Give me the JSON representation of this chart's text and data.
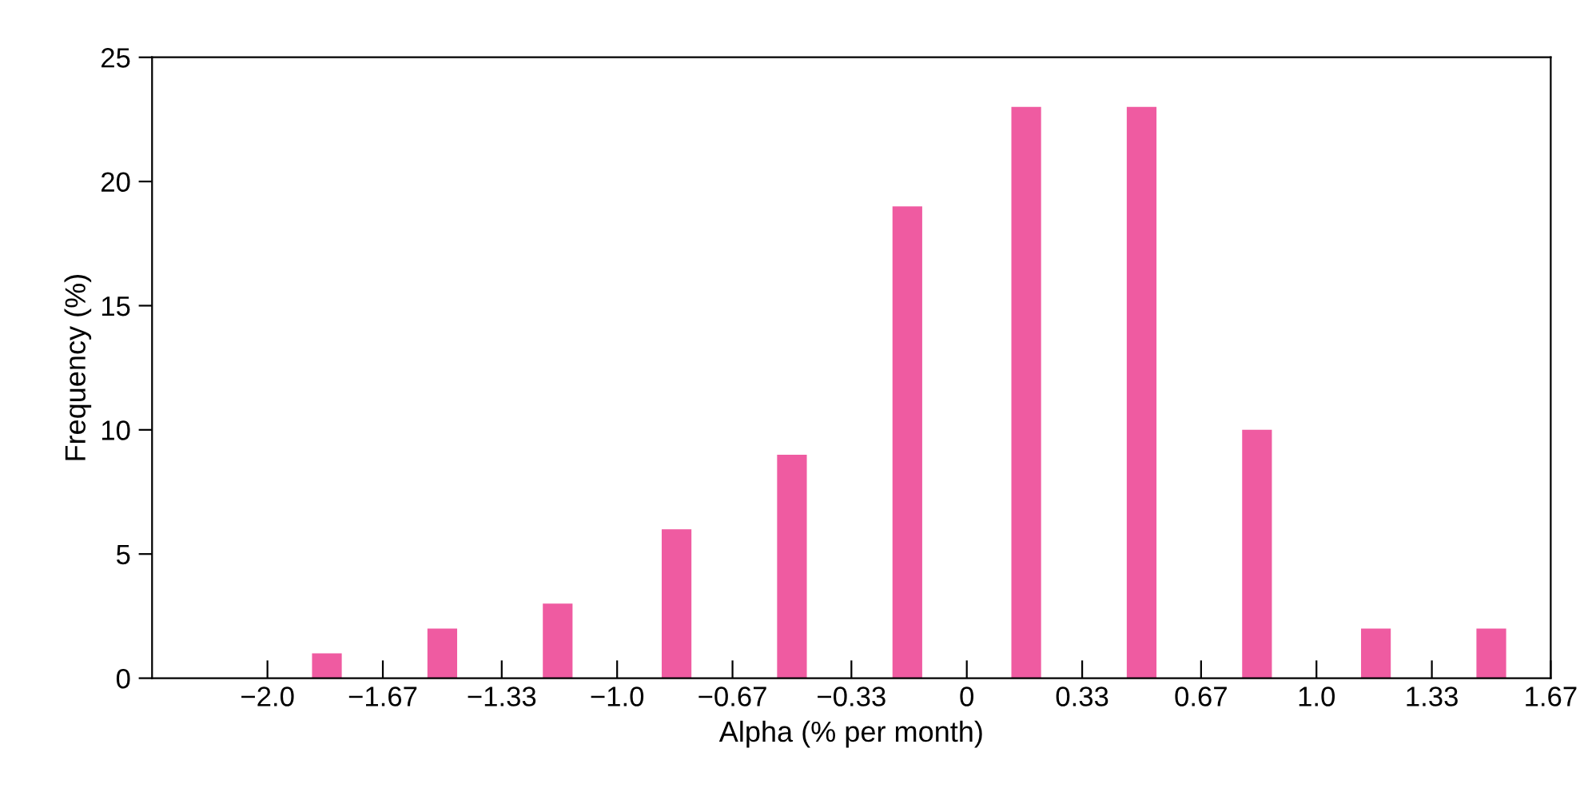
{
  "chart_data": {
    "type": "bar",
    "xlabel": "Alpha (% per month)",
    "ylabel": "Frequency (%)",
    "x": [
      -1.83,
      -1.5,
      -1.17,
      -0.83,
      -0.5,
      -0.17,
      0.17,
      0.5,
      0.83,
      1.17,
      1.5
    ],
    "values": [
      1,
      2,
      3,
      6,
      9,
      19,
      23,
      23,
      10,
      2,
      2
    ],
    "color": "#ef5ba1",
    "xlim": [
      -2.33,
      1.67
    ],
    "xticks": [
      {
        "value": -2.0,
        "label": "−2.0"
      },
      {
        "value": -1.67,
        "label": "−1.67"
      },
      {
        "value": -1.33,
        "label": "−1.33"
      },
      {
        "value": -1.0,
        "label": "−1.0"
      },
      {
        "value": -0.67,
        "label": "−0.67"
      },
      {
        "value": -0.33,
        "label": "−0.33"
      },
      0,
      0.33,
      0.67,
      {
        "value": 1.0,
        "label": "1.0"
      },
      1.33,
      1.67
    ],
    "ylim": [
      0,
      25
    ],
    "yticks": [
      0,
      5,
      10,
      15,
      20,
      25
    ],
    "grid": false
  }
}
